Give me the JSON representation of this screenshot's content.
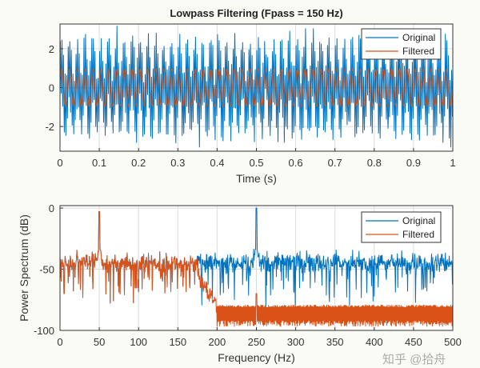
{
  "colors": {
    "original": "#0072BD",
    "filtered": "#D95319",
    "background": "#fbfbf6",
    "grid": "#dcdcdc"
  },
  "watermark": "知乎 @拾舟",
  "chart_data": [
    {
      "type": "line",
      "title": "Lowpass Filtering  (Fpass = 150 Hz)",
      "xlabel": "Time (s)",
      "ylabel": "",
      "xlim": [
        0,
        1
      ],
      "ylim": [
        -3.27,
        3.27
      ],
      "xticks": [
        "0",
        "0.1",
        "0.2",
        "0.3",
        "0.4",
        "0.5",
        "0.6",
        "0.7",
        "0.8",
        "0.9",
        "1"
      ],
      "yticks": [
        "-2",
        "0",
        "2"
      ],
      "ytick_values": [
        -2,
        0,
        2
      ],
      "grid": true,
      "legend": "top-right",
      "series": [
        {
          "name": "Original",
          "description_amplitude_range": [
            -3.2,
            3.2
          ],
          "dominant_frequencies_hz": [
            50,
            250
          ]
        },
        {
          "name": "Filtered",
          "description_amplitude_range": [
            -1,
            1
          ],
          "dominant_frequencies_hz": [
            50
          ]
        }
      ]
    },
    {
      "type": "line",
      "title": "",
      "xlabel": "Frequency (Hz)",
      "ylabel": "Power Spectrum (dB)",
      "xlim": [
        0,
        500
      ],
      "ylim": [
        -100,
        2
      ],
      "xticks": [
        "0",
        "50",
        "100",
        "150",
        "200",
        "250",
        "300",
        "350",
        "400",
        "450",
        "500"
      ],
      "yticks": [
        "-100",
        "-50",
        "0"
      ],
      "ytick_values": [
        -100,
        -50,
        0
      ],
      "grid": true,
      "legend": "top-right",
      "series": [
        {
          "name": "Original",
          "peaks": [
            {
              "x": 50,
              "y": -3
            },
            {
              "x": 250,
              "y": 0
            }
          ],
          "noise_floor_db": -45
        },
        {
          "name": "Filtered",
          "peaks": [
            {
              "x": 50,
              "y": -3
            },
            {
              "x": 250,
              "y": -70
            }
          ],
          "noise_floor_db_below_175hz": -45,
          "stopband_db_above_200hz": [
            -97,
            -78
          ]
        }
      ]
    }
  ]
}
